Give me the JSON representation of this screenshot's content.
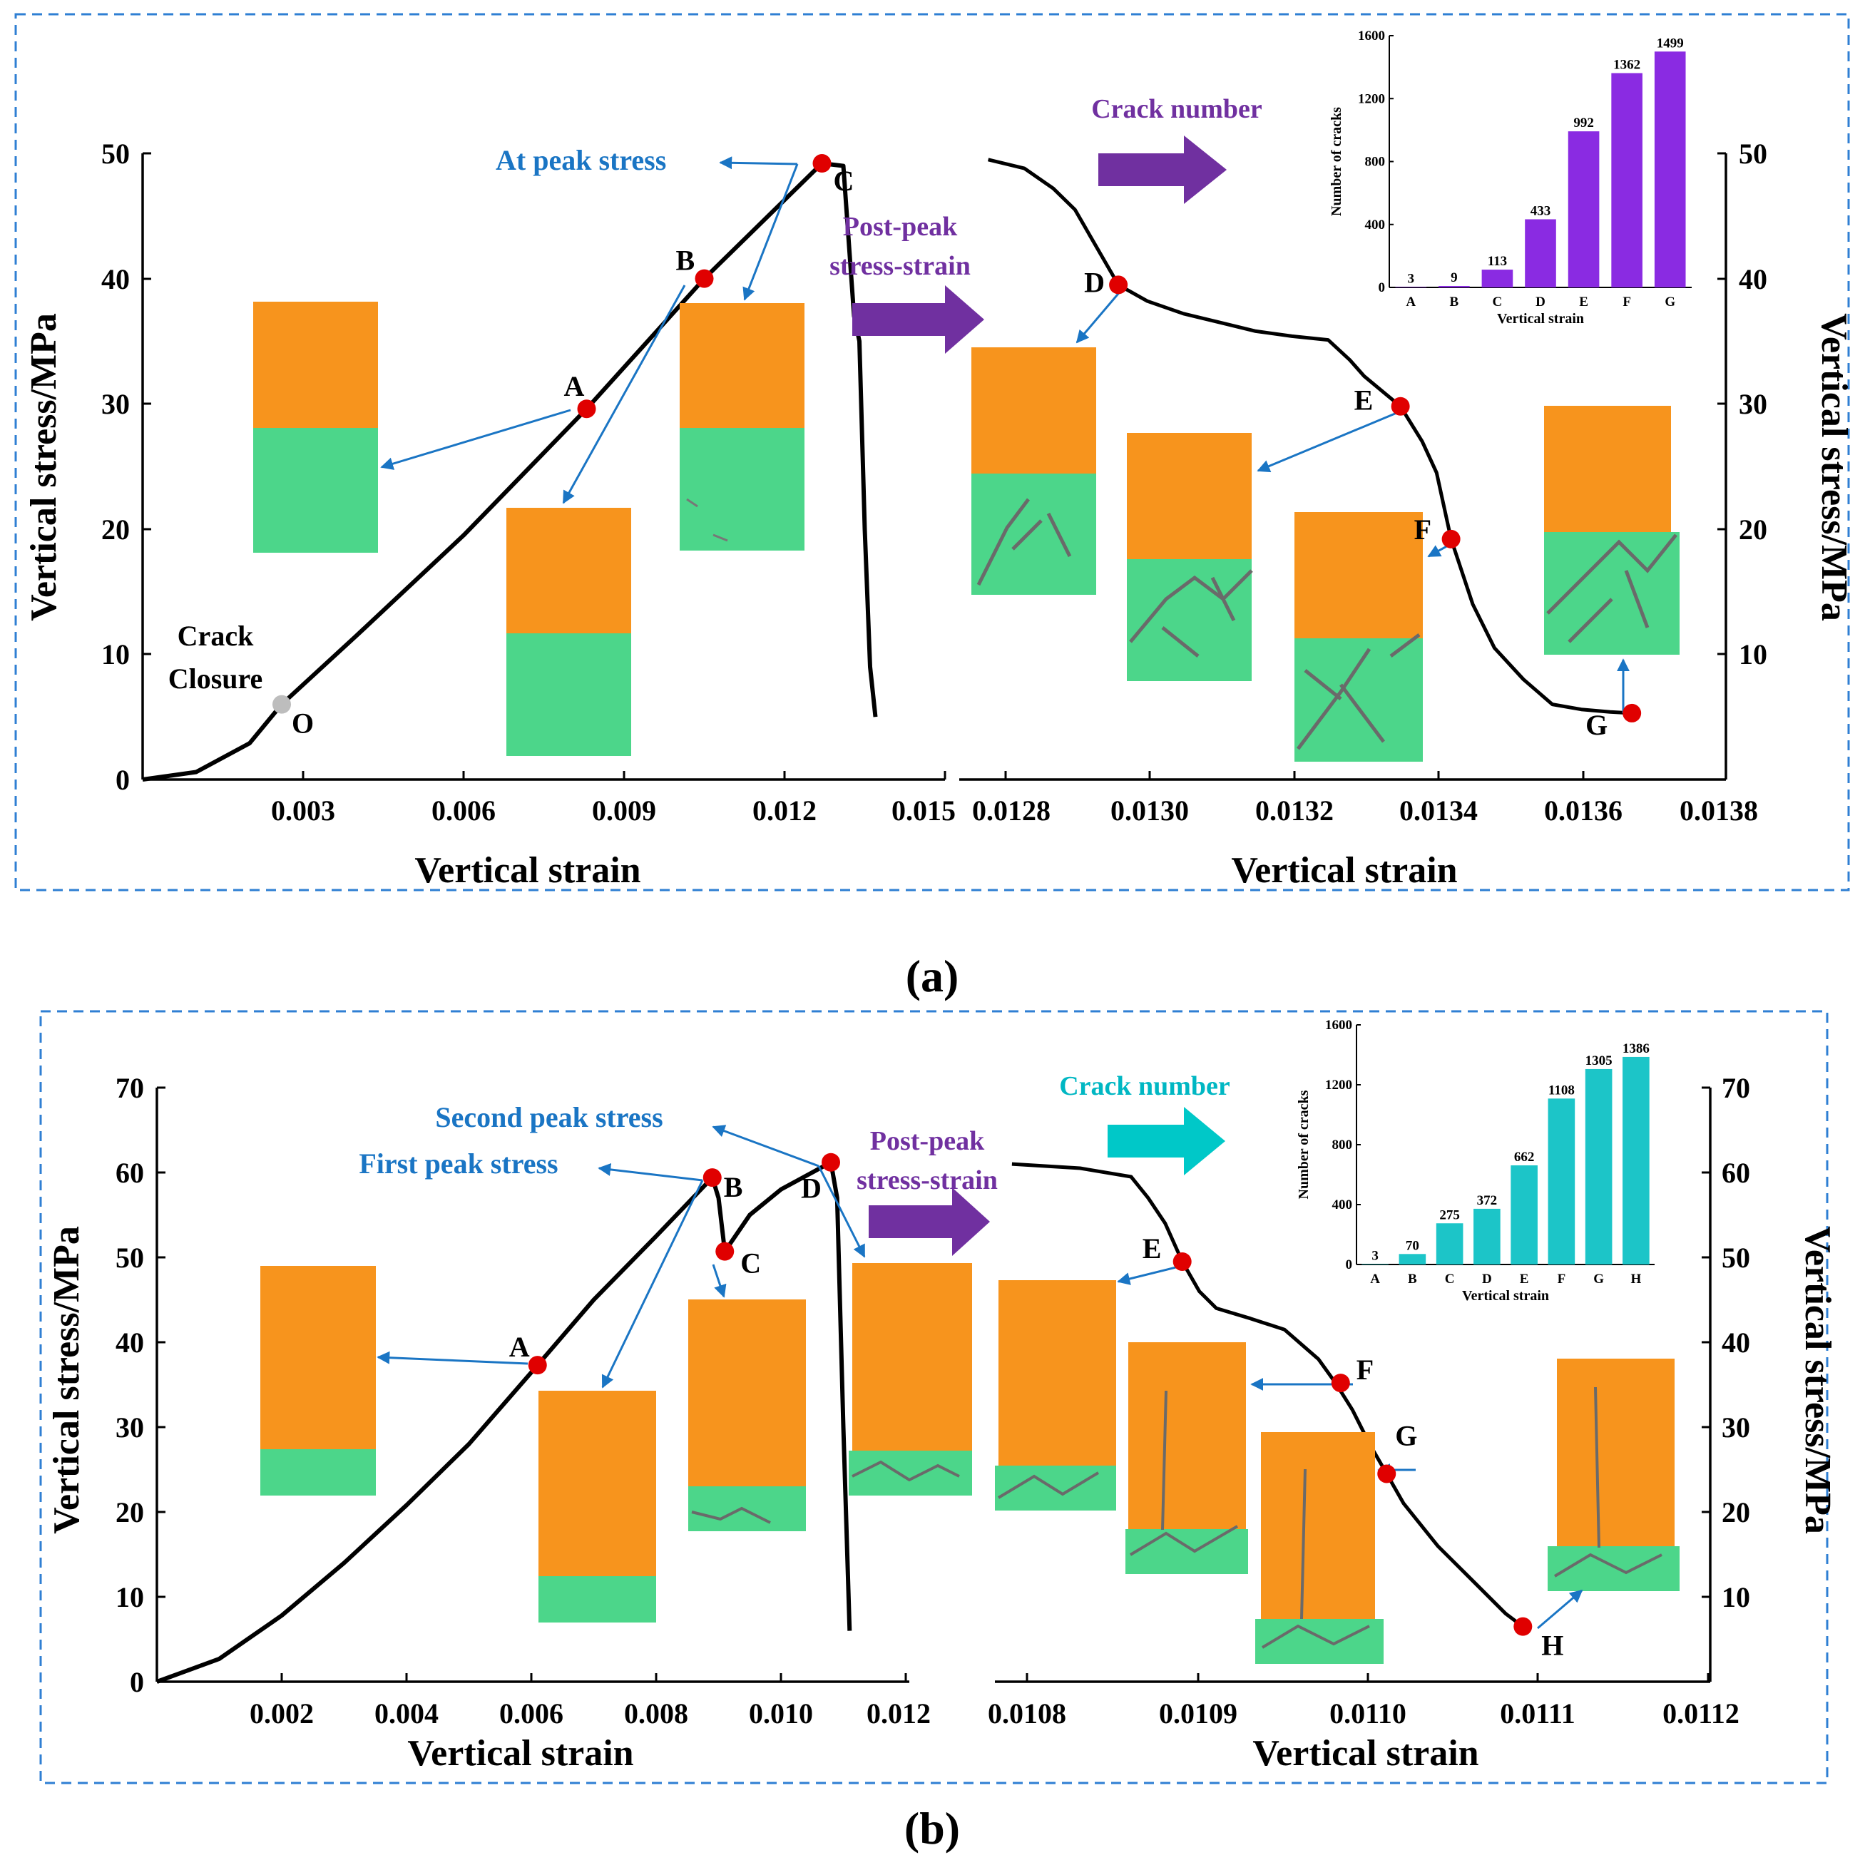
{
  "chart_data": [
    {
      "id": "a",
      "type": "line",
      "caption": "(a)",
      "colors": {
        "curve": "#000000",
        "point": "#e00000",
        "point_closure": "#bdbdbd",
        "annotation": "#1a75c4",
        "arrow_big": "#7030a0",
        "bar": "#8a2be2",
        "orange": "#f7941d",
        "green": "#4cd68a"
      },
      "left": {
        "xlabel": "Vertical strain",
        "ylabel": "Vertical stress/MPa",
        "xlim": [
          0,
          0.015
        ],
        "ylim": [
          0,
          50
        ],
        "xticks": [
          "0.003",
          "0.006",
          "0.009",
          "0.012",
          "0.015"
        ],
        "yticks": [
          "0",
          "10",
          "20",
          "30",
          "40",
          "50"
        ],
        "curve": [
          [
            0,
            0
          ],
          [
            0.001,
            0.6
          ],
          [
            0.002,
            2.9
          ],
          [
            0.0026,
            6.0
          ],
          [
            0.004,
            11.5
          ],
          [
            0.006,
            19.5
          ],
          [
            0.0083,
            29.6
          ],
          [
            0.0105,
            40.0
          ],
          [
            0.0127,
            49.2
          ],
          [
            0.0131,
            49.0
          ],
          [
            0.0133,
            37
          ],
          [
            0.0134,
            35
          ],
          [
            0.0135,
            20
          ],
          [
            0.0136,
            9
          ],
          [
            0.0137,
            5
          ]
        ],
        "points": [
          {
            "label": "O",
            "x": 0.0026,
            "y": 6.0,
            "kind": "closure"
          },
          {
            "label": "A",
            "x": 0.0083,
            "y": 29.6
          },
          {
            "label": "B",
            "x": 0.0105,
            "y": 40.0
          },
          {
            "label": "C",
            "x": 0.0127,
            "y": 49.2
          }
        ],
        "annotations": {
          "peak": "At peak stress",
          "closure_line1": "Crack",
          "closure_line2": "Closure"
        }
      },
      "right": {
        "xlabel": "Vertical strain",
        "ylabel": "Vertical stress/MPa",
        "xlim": [
          0.01274,
          0.0138
        ],
        "ylim": [
          0,
          50
        ],
        "xticks": [
          "0.0128",
          "0.0130",
          "0.0132",
          "0.0134",
          "0.0136",
          "0.0138"
        ],
        "yticks": [
          "10",
          "20",
          "30",
          "40",
          "50"
        ],
        "curve": [
          [
            0.01278,
            49.5
          ],
          [
            0.01283,
            48.8
          ],
          [
            0.01287,
            47.2
          ],
          [
            0.0129,
            45.5
          ],
          [
            0.01293,
            42.5
          ],
          [
            0.01296,
            39.5
          ],
          [
            0.013,
            38.2
          ],
          [
            0.01305,
            37.2
          ],
          [
            0.0131,
            36.5
          ],
          [
            0.01315,
            35.8
          ],
          [
            0.0132,
            35.4
          ],
          [
            0.01325,
            35.1
          ],
          [
            0.01328,
            33.5
          ],
          [
            0.0133,
            32.2
          ],
          [
            0.01335,
            29.8
          ],
          [
            0.01338,
            27
          ],
          [
            0.0134,
            24.5
          ],
          [
            0.01342,
            19.2
          ],
          [
            0.01345,
            14
          ],
          [
            0.01348,
            10.5
          ],
          [
            0.01352,
            8
          ],
          [
            0.01356,
            6
          ],
          [
            0.0136,
            5.6
          ],
          [
            0.01364,
            5.4
          ],
          [
            0.01367,
            5.3
          ]
        ],
        "points": [
          {
            "label": "D",
            "x": 0.01296,
            "y": 39.5
          },
          {
            "label": "E",
            "x": 0.01335,
            "y": 29.8
          },
          {
            "label": "F",
            "x": 0.01342,
            "y": 19.2
          },
          {
            "label": "G",
            "x": 0.01367,
            "y": 5.3
          }
        ],
        "annotations": {
          "postpeak_line1": "Post-peak",
          "postpeak_line2": "stress-strain",
          "crack_number": "Crack number"
        }
      },
      "inset": {
        "type": "bar",
        "categories": [
          "A",
          "B",
          "C",
          "D",
          "E",
          "F",
          "G"
        ],
        "values": [
          3,
          9,
          113,
          433,
          992,
          1362,
          1499
        ],
        "ylim": [
          0,
          1600
        ],
        "yticks": [
          "0",
          "400",
          "800",
          "1200",
          "1600"
        ],
        "xlabel": "Vertical strain",
        "ylabel": "Number of cracks"
      }
    },
    {
      "id": "b",
      "type": "line",
      "caption": "(b)",
      "colors": {
        "curve": "#000000",
        "point": "#e00000",
        "annotation": "#1a75c4",
        "arrow_big": "#00c8c8",
        "bar": "#1cc5c8",
        "orange": "#f7941d",
        "green": "#4cd68a"
      },
      "left": {
        "xlabel": "Vertical strain",
        "ylabel": "Vertical stress/MPa",
        "xlim": [
          0,
          0.012
        ],
        "ylim": [
          0,
          70
        ],
        "xticks": [
          "0.002",
          "0.004",
          "0.006",
          "0.008",
          "0.010",
          "0.012"
        ],
        "yticks": [
          "0",
          "10",
          "20",
          "30",
          "40",
          "50",
          "60",
          "70"
        ],
        "curve": [
          [
            0,
            0
          ],
          [
            0.001,
            2.7
          ],
          [
            0.002,
            7.8
          ],
          [
            0.003,
            14
          ],
          [
            0.004,
            20.8
          ],
          [
            0.005,
            28
          ],
          [
            0.0061,
            37.3
          ],
          [
            0.007,
            45
          ],
          [
            0.008,
            52.5
          ],
          [
            0.0089,
            59.4
          ],
          [
            0.009,
            57
          ],
          [
            0.0091,
            50.7
          ],
          [
            0.0095,
            55
          ],
          [
            0.01,
            58
          ],
          [
            0.0105,
            60
          ],
          [
            0.0108,
            61.2
          ],
          [
            0.0109,
            57
          ],
          [
            0.011,
            30
          ],
          [
            0.0111,
            6
          ]
        ],
        "points": [
          {
            "label": "A",
            "x": 0.0061,
            "y": 37.3
          },
          {
            "label": "B",
            "x": 0.0089,
            "y": 59.4
          },
          {
            "label": "C",
            "x": 0.0091,
            "y": 50.7
          },
          {
            "label": "D",
            "x": 0.0108,
            "y": 61.2
          }
        ],
        "annotations": {
          "second_peak": "Second peak stress",
          "first_peak": "First peak stress"
        }
      },
      "right": {
        "xlabel": "Vertical strain",
        "ylabel": "Vertical stress/MPa",
        "xlim": [
          0.01078,
          0.0112
        ],
        "ylim": [
          0,
          70
        ],
        "xticks": [
          "0.0108",
          "0.0109",
          "0.0110",
          "0.0111",
          "0.0112"
        ],
        "yticks": [
          "10",
          "20",
          "30",
          "40",
          "50",
          "60",
          "70"
        ],
        "curve": [
          [
            0.01079,
            61
          ],
          [
            0.01083,
            60.5
          ],
          [
            0.01086,
            59.5
          ],
          [
            0.01087,
            57
          ],
          [
            0.01088,
            54
          ],
          [
            0.01089,
            49.5
          ],
          [
            0.0109,
            46
          ],
          [
            0.01091,
            44
          ],
          [
            0.01093,
            42.8
          ],
          [
            0.01095,
            41.5
          ],
          [
            0.01097,
            38
          ],
          [
            0.01098,
            35.2
          ],
          [
            0.01099,
            32
          ],
          [
            0.011,
            28
          ],
          [
            0.01101,
            24.5
          ],
          [
            0.01102,
            21
          ],
          [
            0.01104,
            16
          ],
          [
            0.01106,
            12
          ],
          [
            0.01108,
            8
          ],
          [
            0.01109,
            6.5
          ]
        ],
        "points": [
          {
            "label": "E",
            "x": 0.01089,
            "y": 49.5
          },
          {
            "label": "F",
            "x": 0.010983,
            "y": 35.2
          },
          {
            "label": "G",
            "x": 0.01101,
            "y": 24.5
          },
          {
            "label": "H",
            "x": 0.01109,
            "y": 6.5
          }
        ],
        "annotations": {
          "postpeak_line1": "Post-peak",
          "postpeak_line2": "stress-strain",
          "crack_number": "Crack number"
        }
      },
      "inset": {
        "type": "bar",
        "categories": [
          "A",
          "B",
          "C",
          "D",
          "E",
          "F",
          "G",
          "H"
        ],
        "values": [
          3,
          70,
          275,
          372,
          662,
          1108,
          1305,
          1386
        ],
        "ylim": [
          0,
          1600
        ],
        "yticks": [
          "0",
          "400",
          "800",
          "1200",
          "1600"
        ],
        "xlabel": "Vertical strain",
        "ylabel": "Number of cracks"
      }
    }
  ]
}
